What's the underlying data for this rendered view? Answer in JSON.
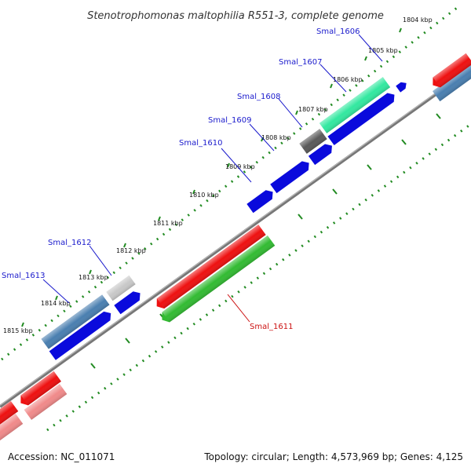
{
  "title": "Stenotrophomonas maltophilia R551-3, complete genome",
  "footer": {
    "accession": "Accession: NC_011071",
    "summary": "Topology: circular; Length: 4,573,969 bp; Genes: 4,125"
  },
  "scale_labels": [
    "1804 kbp",
    "1805 kbp",
    "1806 kbp",
    "1807 kbp",
    "1808 kbp",
    "1809 kbp",
    "1810 kbp",
    "1811 kbp",
    "1812 kbp",
    "1813 kbp",
    "1814 kbp",
    "1815 kbp"
  ],
  "gene_labels": [
    "Smal_1606",
    "Smal_1607",
    "Smal_1608",
    "Smal_1609",
    "Smal_1610",
    "Smal_1611",
    "Smal_1612",
    "Smal_1613"
  ],
  "colors": {
    "backbone": "#888888",
    "tick": "#228b22",
    "forward_blue": "#0a0adc",
    "steel_blue": "#4a7fb0",
    "red": "#ee1111",
    "pink": "#f08a8a",
    "green": "#33bb33",
    "aqua_green": "#33e8a0",
    "dark_grey": "#5a5a5a",
    "light_grey": "#c8c8c8",
    "label_blue": "#1a1acc",
    "label_red": "#cc1111"
  }
}
